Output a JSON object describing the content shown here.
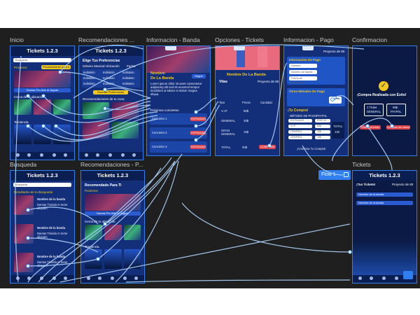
{
  "frames": {
    "inicio": {
      "label": "Inicio",
      "app_title": "Tickets 1.2.3",
      "search_placeholder": "Busqueda",
      "promo_label": "Proximos",
      "promo_pill": "Proximamente para ti",
      "event1": "Damas Pro Arte el Jaguar",
      "section1": "Cerca de tu ubicación",
      "section2": "Tendencia"
    },
    "recomendaciones": {
      "label": "Recomendaciones ...",
      "app_title": "Tickets 1.2.3",
      "heading": "Elige Tus Preferencias",
      "tabs": [
        "Género Musical",
        "Ubicación",
        "Fecha"
      ],
      "options": [
        "Indistinto",
        "Indistinto",
        "Indistinto",
        "Indistinto",
        "Indistinto",
        "Indistinto",
        "Indistinto",
        "Indistinto",
        "Indistinto"
      ],
      "save_button": "Guardar Preferencias",
      "section": "Recomendaciones de tu zona"
    },
    "banda": {
      "label": "Informacion - Banda",
      "name_line1": "Nombre",
      "name_line2": "De La Banda",
      "follow": "Seguir",
      "desc": "Lorem ipsum dolor sit amet consectetur adipiscing elit sed do eiusmod tempor incididunt ut labore et dolore magna aliqua.",
      "section": "Próximos conciertos",
      "items": [
        "Concierto 1",
        "Concierto 2",
        "Concierto 3"
      ],
      "entradas": "ENTRADAS"
    },
    "opciones": {
      "label": "Opciones - Tickets",
      "band_name": "Nombre De La Banda",
      "venue_label": "Vitas",
      "project": "Proyecto de 80",
      "columns": [
        "Tipo",
        "Precio",
        "Cantidad"
      ],
      "rows": [
        {
          "tipo": "V.I.P",
          "precio": "80$"
        },
        {
          "tipo": "GENERAL",
          "precio": "30$"
        },
        {
          "tipo": "GRAN GENERAL",
          "precio": "15$"
        }
      ],
      "total_label": "TOTAL:",
      "total_value": "00$",
      "buy_button": "COMPRAR"
    },
    "pago": {
      "label": "Informacion - Pago",
      "project": "Proyecto de 80",
      "form_title": "Información De Pago",
      "fields": [
        "Nombre",
        "Número de tarjeta",
        "Fecha de vencimiento"
      ],
      "methods_title": "Otros Métodos De Pago",
      "paypal": "PayPal",
      "purchase_title": "¡Tu Compra!",
      "method_label": "MÉTODO DE PAGO:",
      "method_value": "PAYPAL",
      "cols": [
        "ENTRADAS",
        "PRECIO"
      ],
      "rows": [
        {
          "name": "V.I.P",
          "price": "80$"
        },
        {
          "name": "GENERAL",
          "price": "30$"
        },
        {
          "name": "GENERAL",
          "price": "15$"
        }
      ],
      "total_label": "TOTAL:",
      "total_value": "125",
      "confirm": "¡Confirma Tu Compra!"
    },
    "confirmacion": {
      "label": "Confirmacion",
      "message": "¡Compra Realizada con Éxito!",
      "tickets_value": "1 Ticket",
      "tickets_label": "GENERAL",
      "price_value": "99$",
      "method": "PAYPAL",
      "btn_home": "Volver al inicio",
      "btn_again": "Comprar de nuevo"
    },
    "busqueda": {
      "label": "Busqueda",
      "app_title": "Tickets 1.2.3",
      "search_placeholder": "Busqueda",
      "results_title": "Resultados de tu Busqueda",
      "results": [
        {
          "name": "Nombre de la banda",
          "desc": "Damas Tinnida m tortor aliquam"
        },
        {
          "name": "Nombre de la banda",
          "desc": "Damas Tinnida m tortor aliquam"
        },
        {
          "name": "Nombre de la banda",
          "desc": "Damas Tinnida m tortor aliquam"
        }
      ]
    },
    "recomendaciones2": {
      "label": "Recomendaciones - P...",
      "app_title": "Tickets 1.2.3",
      "heading": "Recomendado Para Ti",
      "promo_label": "Proximos",
      "event1": "Damas Pro Arte el Jaguar",
      "section1": "Cerca de tu ubicación",
      "section2": "Tendencia"
    },
    "tickets": {
      "label": "Tickets",
      "app_title": "Tickets 1.2.3",
      "sub": "¡Tus Tickets!",
      "project": "Proyecto de 80",
      "items": [
        "Nombre de la banda",
        "Nombre de la banda"
      ]
    }
  },
  "flow_badge": "Flow 1",
  "colors": {
    "canvas": "#1f1f1f",
    "frame_border": "#2f7ff0",
    "app_blue": "#142f7a",
    "accent_yellow": "#f2c81d",
    "accent_red": "#e0434a",
    "connector": "#a9cdf5"
  }
}
